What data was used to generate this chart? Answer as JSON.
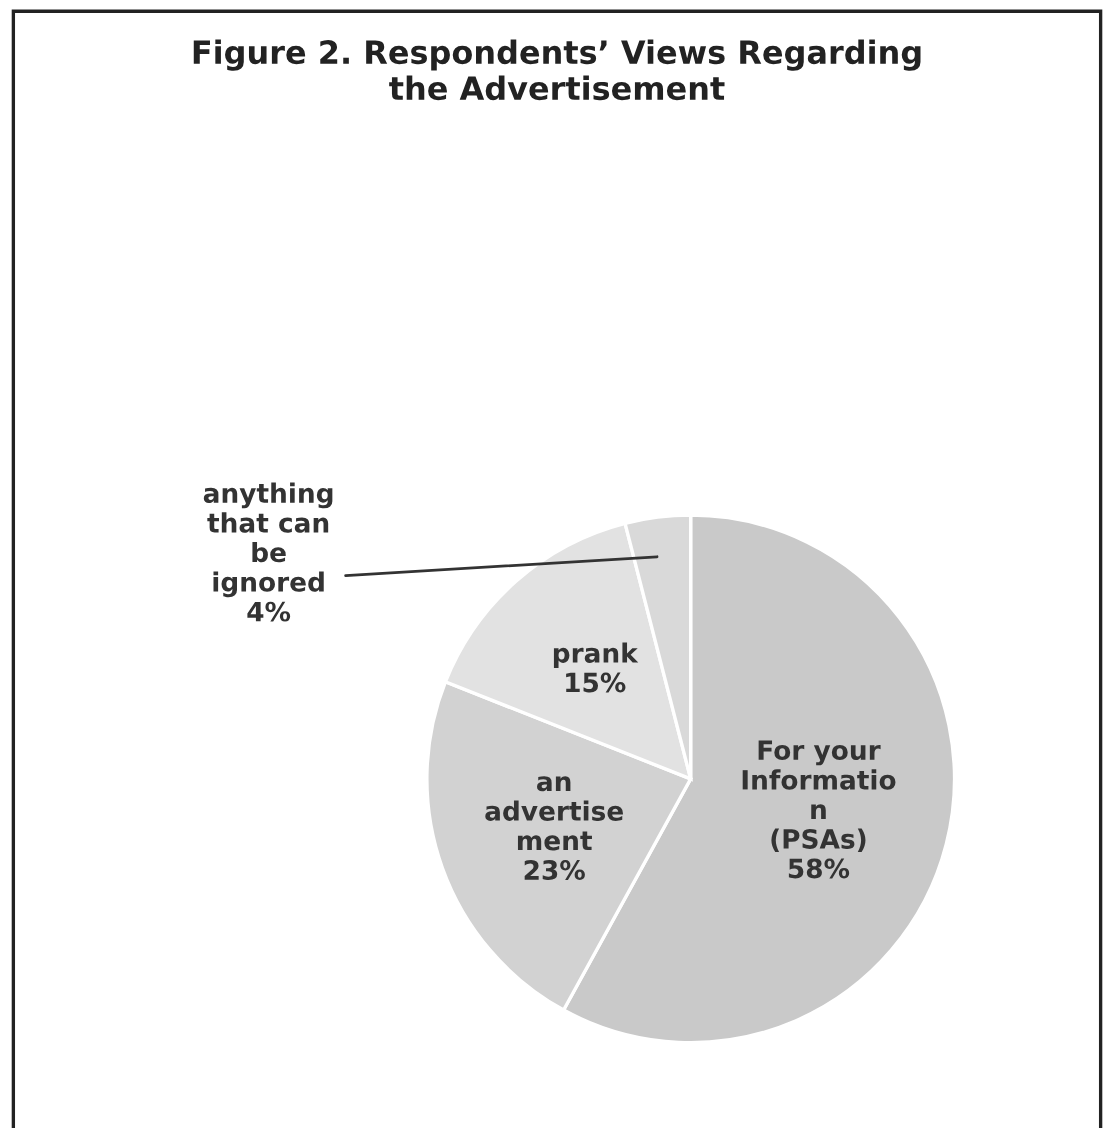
{
  "chart_data": {
    "type": "pie",
    "title": "Figure 2. Respondents’ Views Regarding\nthe Advertisement",
    "categories": [
      "For your\nInformatio\nn\n(PSAs)",
      "an\nadvertise\nment",
      "prank",
      "anything\nthat can\nbe\nignored"
    ],
    "values": [
      58,
      23,
      15,
      4
    ],
    "colors": [
      "#c9c9c9",
      "#d2d2d2",
      "#e2e2e2",
      "#d9d9d9"
    ],
    "value_labels": [
      "58%",
      "23%",
      "15%",
      "4%"
    ],
    "legend": false
  }
}
